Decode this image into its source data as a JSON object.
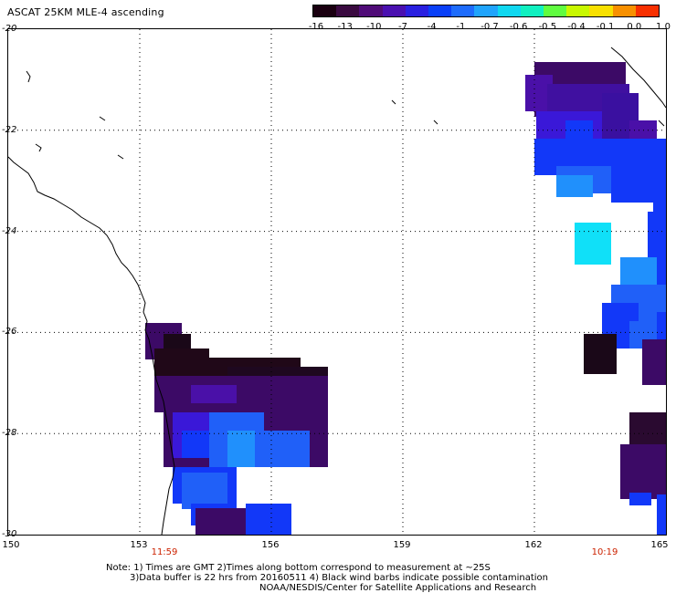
{
  "title": "ASCAT 25KM MLE-4 ascending",
  "colorbar": {
    "labels": [
      "-16",
      "-13",
      "-10",
      "-7",
      "-4",
      "-1",
      "-0.7",
      "-0.6",
      "-0.5",
      "-0.4",
      "-0.1",
      "0.0",
      "1.0"
    ],
    "colors": [
      "#1a0010",
      "#3a0a40",
      "#500c78",
      "#4a10b0",
      "#2a20e0",
      "#0a40f8",
      "#1e6cfc",
      "#20a4fc",
      "#10d8f0",
      "#10f0c0",
      "#60fc40",
      "#c8f800",
      "#f8e000",
      "#f89000",
      "#f83000"
    ]
  },
  "map": {
    "lat_labels": [
      "-20",
      "-22",
      "-24",
      "-26",
      "-28",
      "-30"
    ],
    "lon_labels": [
      "150",
      "153",
      "156",
      "159",
      "162",
      "165"
    ],
    "time_labels": [
      "11:59",
      "10:19"
    ],
    "lat_range": [
      -30,
      -20
    ],
    "lon_range": [
      150,
      165
    ]
  },
  "notes": [
    "Note: 1) Times are GMT 2)Times along bottom correspond to measurement at ~25S",
    "3)Data buffer is 22 hrs from 20160511 4) Black wind barbs indicate possible contamination",
    "NOAA/NESDIS/Center for Satellite Applications and Research"
  ]
}
